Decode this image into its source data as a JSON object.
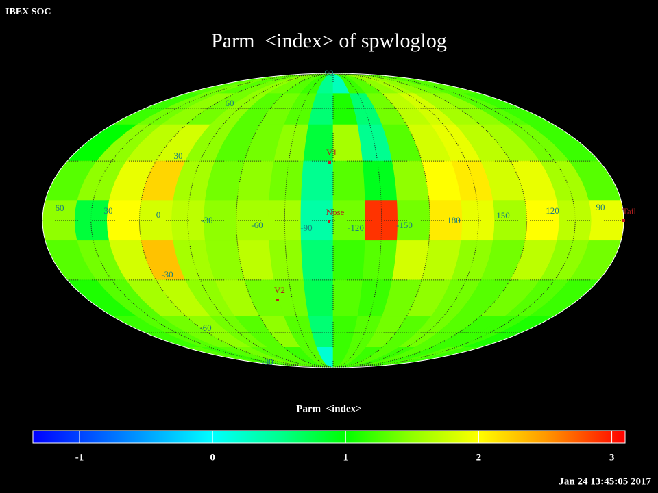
{
  "header": "IBEX SOC",
  "title": "Parm  <index> of spwloglog",
  "map": {
    "cells": [
      [
        1.3,
        1.4,
        1.3,
        1.4,
        1.5,
        1.4,
        1.3,
        1.2,
        0.5,
        0.3,
        1.2,
        1.3,
        1.5,
        1.6,
        1.5,
        1.4,
        1.3,
        1.3
      ],
      [
        1.2,
        1.4,
        1.5,
        1.4,
        1.5,
        1.3,
        1.4,
        1.3,
        0.6,
        1.1,
        0.6,
        1.4,
        1.7,
        1.8,
        1.6,
        1.5,
        1.3,
        1.2
      ],
      [
        1.0,
        1.5,
        1.7,
        1.8,
        1.5,
        1.3,
        1.4,
        1.5,
        0.8,
        1.6,
        0.5,
        1.3,
        1.8,
        1.9,
        1.7,
        1.6,
        1.4,
        1.2
      ],
      [
        1.3,
        1.5,
        1.9,
        2.2,
        1.6,
        1.4,
        1.5,
        1.4,
        0.5,
        1.3,
        0.9,
        1.5,
        2.0,
        2.1,
        1.8,
        1.9,
        1.6,
        1.3
      ],
      [
        1.5,
        0.8,
        2.0,
        1.8,
        1.7,
        1.5,
        1.6,
        1.6,
        0.4,
        1.4,
        2.9,
        1.4,
        2.1,
        1.9,
        1.6,
        2.0,
        1.7,
        1.9
      ],
      [
        1.3,
        1.4,
        1.8,
        2.3,
        1.6,
        1.5,
        1.7,
        1.5,
        0.6,
        1.2,
        1.3,
        1.8,
        1.7,
        1.5,
        1.4,
        1.7,
        1.5,
        1.4
      ],
      [
        1.1,
        1.3,
        1.6,
        1.7,
        1.5,
        1.6,
        1.4,
        1.4,
        0.7,
        1.3,
        1.2,
        1.4,
        1.5,
        1.4,
        1.3,
        1.4,
        1.3,
        1.2
      ],
      [
        1.2,
        1.3,
        1.4,
        1.5,
        1.4,
        1.3,
        1.5,
        1.3,
        0.6,
        1.2,
        1.3,
        1.4,
        1.3,
        1.4,
        1.3,
        1.2,
        1.2,
        1.1
      ],
      [
        1.3,
        1.2,
        1.3,
        1.4,
        1.3,
        1.3,
        1.2,
        1.3,
        0.2,
        1.2,
        1.3,
        1.2,
        1.3,
        1.2,
        1.3,
        1.2,
        1.3,
        1.2
      ]
    ],
    "grid_labels": [
      "90",
      "60",
      "30",
      "60",
      "30",
      "0",
      "-30",
      "-60",
      "-90",
      "-120",
      "-150",
      "180",
      "150",
      "120",
      "90",
      "-30",
      "-60",
      "-90"
    ],
    "markers": [
      "V1",
      "Nose",
      "V2",
      "Tail"
    ]
  },
  "colorbar": {
    "label": "Parm  <index>",
    "range": [
      -1.35,
      3.1
    ],
    "ticks": [
      -1,
      0,
      1,
      2,
      3
    ],
    "colormap": [
      {
        "value": -1.35,
        "color": "#0000ff"
      },
      {
        "value": 0,
        "color": "#00ffff"
      },
      {
        "value": 0.5,
        "color": "#00ff90"
      },
      {
        "value": 1,
        "color": "#00ff00"
      },
      {
        "value": 1.5,
        "color": "#90ff00"
      },
      {
        "value": 2,
        "color": "#ffff00"
      },
      {
        "value": 2.5,
        "color": "#ff9900"
      },
      {
        "value": 3.1,
        "color": "#ff0000"
      }
    ]
  },
  "timestamp": "Jan 24 13:45:05 2017"
}
